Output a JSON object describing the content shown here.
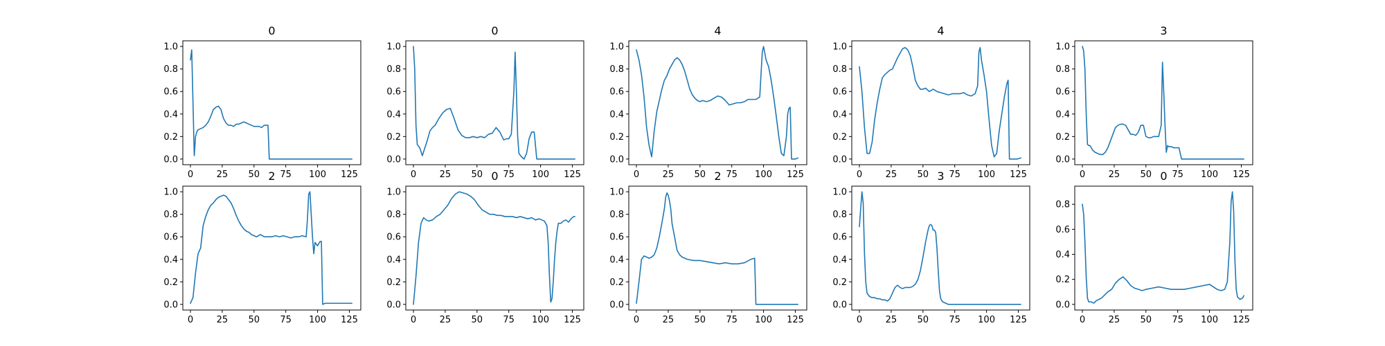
{
  "colors": {
    "line": "#1f77b4",
    "axis": "#000000",
    "background": "#ffffff"
  },
  "chart_data": [
    {
      "type": "line",
      "title": "0",
      "xlim": [
        -6,
        134
      ],
      "ylim": [
        -0.05,
        1.05
      ],
      "xticks": [
        0,
        25,
        50,
        75,
        100,
        125
      ],
      "yticks": [
        0.0,
        0.2,
        0.4,
        0.6,
        0.8,
        1.0
      ],
      "x": [
        0,
        1,
        2,
        3,
        4,
        5,
        6,
        8,
        10,
        12,
        14,
        16,
        18,
        20,
        22,
        24,
        26,
        28,
        30,
        32,
        34,
        36,
        38,
        40,
        42,
        44,
        46,
        48,
        50,
        52,
        54,
        56,
        58,
        60,
        61,
        62,
        64,
        70,
        80,
        90,
        100,
        110,
        120,
        127
      ],
      "y": [
        0.88,
        0.97,
        0.5,
        0.03,
        0.2,
        0.24,
        0.26,
        0.27,
        0.28,
        0.3,
        0.33,
        0.38,
        0.44,
        0.46,
        0.47,
        0.44,
        0.36,
        0.32,
        0.3,
        0.3,
        0.29,
        0.31,
        0.31,
        0.32,
        0.33,
        0.32,
        0.31,
        0.3,
        0.29,
        0.29,
        0.29,
        0.28,
        0.3,
        0.3,
        0.3,
        0.0,
        0.0,
        0.0,
        0.0,
        0.0,
        0.0,
        0.0,
        0.0,
        0.0
      ]
    },
    {
      "type": "line",
      "title": "0",
      "xlim": [
        -6,
        134
      ],
      "ylim": [
        -0.05,
        1.05
      ],
      "xticks": [
        0,
        25,
        50,
        75,
        100,
        125
      ],
      "yticks": [
        0.0,
        0.2,
        0.4,
        0.6,
        0.8,
        1.0
      ],
      "x": [
        0,
        1,
        2,
        3,
        5,
        7,
        9,
        11,
        13,
        15,
        17,
        20,
        23,
        26,
        29,
        32,
        35,
        38,
        41,
        44,
        47,
        50,
        53,
        56,
        59,
        62,
        65,
        68,
        71,
        73,
        75,
        77,
        79,
        80,
        81,
        82,
        83,
        85,
        87,
        89,
        91,
        93,
        95,
        97,
        98,
        100,
        105,
        110,
        120,
        127
      ],
      "y": [
        1.0,
        0.8,
        0.3,
        0.13,
        0.1,
        0.03,
        0.1,
        0.17,
        0.25,
        0.28,
        0.3,
        0.36,
        0.41,
        0.44,
        0.45,
        0.36,
        0.26,
        0.21,
        0.19,
        0.19,
        0.2,
        0.19,
        0.2,
        0.19,
        0.22,
        0.23,
        0.28,
        0.24,
        0.17,
        0.18,
        0.18,
        0.22,
        0.6,
        0.95,
        0.6,
        0.2,
        0.05,
        0.02,
        0.0,
        0.05,
        0.18,
        0.24,
        0.24,
        0.0,
        0.0,
        0.0,
        0.0,
        0.0,
        0.0,
        0.0
      ]
    },
    {
      "type": "line",
      "title": "4",
      "xlim": [
        -6,
        134
      ],
      "ylim": [
        -0.05,
        1.05
      ],
      "xticks": [
        0,
        25,
        50,
        75,
        100,
        125
      ],
      "yticks": [
        0.0,
        0.2,
        0.4,
        0.6,
        0.8,
        1.0
      ],
      "x": [
        0,
        2,
        4,
        6,
        8,
        10,
        12,
        14,
        16,
        18,
        20,
        22,
        24,
        26,
        28,
        30,
        32,
        34,
        36,
        38,
        40,
        42,
        44,
        46,
        48,
        50,
        52,
        55,
        58,
        61,
        64,
        67,
        70,
        73,
        76,
        79,
        82,
        85,
        88,
        91,
        94,
        97,
        99,
        100,
        102,
        104,
        106,
        108,
        110,
        112,
        114,
        116,
        118,
        119,
        120,
        121,
        122,
        125,
        127
      ],
      "y": [
        0.97,
        0.88,
        0.75,
        0.55,
        0.28,
        0.12,
        0.02,
        0.25,
        0.42,
        0.52,
        0.62,
        0.7,
        0.74,
        0.8,
        0.84,
        0.88,
        0.9,
        0.88,
        0.84,
        0.78,
        0.7,
        0.62,
        0.57,
        0.54,
        0.52,
        0.51,
        0.52,
        0.51,
        0.52,
        0.54,
        0.56,
        0.55,
        0.52,
        0.48,
        0.49,
        0.5,
        0.5,
        0.51,
        0.53,
        0.53,
        0.53,
        0.55,
        0.95,
        1.0,
        0.88,
        0.82,
        0.7,
        0.55,
        0.38,
        0.2,
        0.05,
        0.03,
        0.2,
        0.4,
        0.45,
        0.46,
        0.0,
        0.0,
        0.01
      ]
    },
    {
      "type": "line",
      "title": "4",
      "xlim": [
        -6,
        134
      ],
      "ylim": [
        -0.05,
        1.05
      ],
      "xticks": [
        0,
        25,
        50,
        75,
        100,
        125
      ],
      "yticks": [
        0.0,
        0.2,
        0.4,
        0.6,
        0.8,
        1.0
      ],
      "x": [
        0,
        2,
        4,
        6,
        8,
        10,
        12,
        14,
        16,
        18,
        20,
        22,
        24,
        26,
        28,
        30,
        32,
        34,
        36,
        38,
        40,
        42,
        44,
        46,
        48,
        50,
        52,
        55,
        58,
        61,
        64,
        67,
        70,
        73,
        76,
        79,
        82,
        85,
        88,
        91,
        93,
        94,
        95,
        96,
        98,
        100,
        102,
        104,
        106,
        108,
        110,
        112,
        114,
        116,
        117,
        118,
        120,
        124,
        127
      ],
      "y": [
        0.82,
        0.6,
        0.28,
        0.05,
        0.05,
        0.15,
        0.35,
        0.5,
        0.62,
        0.72,
        0.75,
        0.77,
        0.79,
        0.8,
        0.85,
        0.9,
        0.94,
        0.98,
        0.99,
        0.97,
        0.92,
        0.82,
        0.7,
        0.65,
        0.62,
        0.62,
        0.63,
        0.6,
        0.62,
        0.6,
        0.59,
        0.58,
        0.57,
        0.58,
        0.58,
        0.58,
        0.59,
        0.57,
        0.56,
        0.58,
        0.65,
        0.95,
        0.99,
        0.88,
        0.75,
        0.6,
        0.35,
        0.12,
        0.02,
        0.05,
        0.25,
        0.4,
        0.55,
        0.67,
        0.7,
        0.0,
        0.0,
        0.0,
        0.01
      ]
    },
    {
      "type": "line",
      "title": "3",
      "xlim": [
        -6,
        134
      ],
      "ylim": [
        -0.05,
        1.05
      ],
      "xticks": [
        0,
        25,
        50,
        75,
        100,
        125
      ],
      "yticks": [
        0.0,
        0.2,
        0.4,
        0.6,
        0.8,
        1.0
      ],
      "x": [
        0,
        1,
        2,
        3,
        4,
        5,
        6,
        8,
        10,
        12,
        14,
        16,
        18,
        20,
        22,
        24,
        26,
        28,
        30,
        32,
        34,
        36,
        38,
        40,
        42,
        44,
        46,
        48,
        50,
        52,
        54,
        56,
        58,
        60,
        62,
        63,
        64,
        65,
        66,
        67,
        68,
        70,
        72,
        74,
        76,
        78,
        80,
        90,
        100,
        110,
        120,
        127
      ],
      "y": [
        1.0,
        0.96,
        0.8,
        0.4,
        0.13,
        0.12,
        0.12,
        0.08,
        0.06,
        0.05,
        0.04,
        0.04,
        0.06,
        0.1,
        0.16,
        0.22,
        0.28,
        0.3,
        0.31,
        0.31,
        0.3,
        0.26,
        0.22,
        0.22,
        0.21,
        0.24,
        0.3,
        0.3,
        0.2,
        0.19,
        0.19,
        0.2,
        0.2,
        0.2,
        0.3,
        0.86,
        0.6,
        0.3,
        0.06,
        0.12,
        0.11,
        0.11,
        0.1,
        0.1,
        0.1,
        0.0,
        0.0,
        0.0,
        0.0,
        0.0,
        0.0,
        0.0
      ]
    },
    {
      "type": "line",
      "title": "2",
      "xlim": [
        -6,
        134
      ],
      "ylim": [
        -0.05,
        1.05
      ],
      "xticks": [
        0,
        25,
        50,
        75,
        100,
        125
      ],
      "yticks": [
        0.0,
        0.2,
        0.4,
        0.6,
        0.8,
        1.0
      ],
      "x": [
        0,
        2,
        4,
        6,
        8,
        10,
        12,
        14,
        16,
        18,
        20,
        22,
        24,
        26,
        28,
        30,
        32,
        34,
        36,
        38,
        40,
        42,
        44,
        46,
        48,
        50,
        52,
        55,
        58,
        61,
        64,
        67,
        70,
        73,
        76,
        79,
        82,
        85,
        88,
        91,
        92,
        93,
        94,
        95,
        96,
        97,
        98,
        100,
        102,
        103,
        104,
        106,
        110,
        115,
        120,
        125,
        127
      ],
      "y": [
        0.01,
        0.06,
        0.28,
        0.45,
        0.5,
        0.7,
        0.78,
        0.84,
        0.88,
        0.9,
        0.93,
        0.95,
        0.96,
        0.97,
        0.96,
        0.93,
        0.9,
        0.85,
        0.79,
        0.74,
        0.7,
        0.67,
        0.65,
        0.64,
        0.62,
        0.61,
        0.6,
        0.62,
        0.6,
        0.6,
        0.6,
        0.61,
        0.6,
        0.61,
        0.6,
        0.59,
        0.6,
        0.6,
        0.61,
        0.6,
        0.75,
        0.98,
        1.0,
        0.8,
        0.6,
        0.45,
        0.55,
        0.52,
        0.56,
        0.56,
        0.0,
        0.01,
        0.01,
        0.01,
        0.01,
        0.01,
        0.01
      ]
    },
    {
      "type": "line",
      "title": "0",
      "xlim": [
        -6,
        134
      ],
      "ylim": [
        -0.05,
        1.05
      ],
      "xticks": [
        0,
        25,
        50,
        75,
        100,
        125
      ],
      "yticks": [
        0.0,
        0.2,
        0.4,
        0.6,
        0.8,
        1.0
      ],
      "x": [
        0,
        2,
        4,
        6,
        8,
        10,
        12,
        15,
        18,
        21,
        24,
        27,
        30,
        33,
        36,
        39,
        42,
        45,
        48,
        51,
        54,
        57,
        60,
        63,
        66,
        69,
        72,
        75,
        78,
        81,
        84,
        87,
        90,
        93,
        96,
        99,
        101,
        103,
        105,
        106,
        107,
        108,
        109,
        110,
        111,
        112,
        113,
        114,
        116,
        118,
        120,
        122,
        124,
        126,
        127
      ],
      "y": [
        0.0,
        0.25,
        0.55,
        0.72,
        0.77,
        0.75,
        0.74,
        0.75,
        0.78,
        0.8,
        0.84,
        0.88,
        0.94,
        0.98,
        1.0,
        0.99,
        0.98,
        0.96,
        0.93,
        0.88,
        0.84,
        0.82,
        0.8,
        0.8,
        0.79,
        0.79,
        0.78,
        0.78,
        0.78,
        0.77,
        0.78,
        0.77,
        0.76,
        0.77,
        0.75,
        0.76,
        0.75,
        0.74,
        0.7,
        0.55,
        0.25,
        0.02,
        0.05,
        0.2,
        0.4,
        0.55,
        0.65,
        0.72,
        0.72,
        0.74,
        0.75,
        0.73,
        0.76,
        0.78,
        0.78
      ]
    },
    {
      "type": "line",
      "title": "2",
      "xlim": [
        -6,
        134
      ],
      "ylim": [
        -0.05,
        1.05
      ],
      "xticks": [
        0,
        25,
        50,
        75,
        100,
        125
      ],
      "yticks": [
        0.0,
        0.2,
        0.4,
        0.6,
        0.8,
        1.0
      ],
      "x": [
        0,
        2,
        4,
        6,
        8,
        10,
        12,
        14,
        16,
        18,
        20,
        22,
        23,
        24,
        25,
        26,
        27,
        28,
        30,
        32,
        34,
        36,
        38,
        40,
        45,
        50,
        55,
        60,
        65,
        70,
        75,
        80,
        85,
        90,
        93,
        94,
        95,
        100,
        110,
        120,
        127
      ],
      "y": [
        0.01,
        0.2,
        0.4,
        0.43,
        0.42,
        0.41,
        0.42,
        0.44,
        0.5,
        0.6,
        0.72,
        0.85,
        0.95,
        0.99,
        0.97,
        0.92,
        0.85,
        0.72,
        0.6,
        0.48,
        0.44,
        0.42,
        0.41,
        0.4,
        0.39,
        0.39,
        0.38,
        0.37,
        0.36,
        0.37,
        0.36,
        0.36,
        0.37,
        0.4,
        0.41,
        0.0,
        0.0,
        0.0,
        0.0,
        0.0,
        0.0
      ]
    },
    {
      "type": "line",
      "title": "3",
      "xlim": [
        -6,
        134
      ],
      "ylim": [
        -0.05,
        1.05
      ],
      "xticks": [
        0,
        25,
        50,
        75,
        100,
        125
      ],
      "yticks": [
        0.0,
        0.2,
        0.4,
        0.6,
        0.8,
        1.0
      ],
      "x": [
        0,
        1,
        2,
        3,
        4,
        5,
        6,
        8,
        10,
        12,
        14,
        16,
        18,
        20,
        22,
        24,
        26,
        28,
        30,
        32,
        34,
        36,
        38,
        40,
        42,
        44,
        46,
        48,
        50,
        52,
        54,
        55,
        56,
        57,
        58,
        59,
        60,
        61,
        62,
        63,
        64,
        65,
        66,
        68,
        70,
        75,
        80,
        90,
        100,
        110,
        120,
        127
      ],
      "y": [
        0.69,
        0.85,
        1.0,
        0.9,
        0.45,
        0.2,
        0.1,
        0.07,
        0.06,
        0.06,
        0.05,
        0.05,
        0.04,
        0.04,
        0.03,
        0.05,
        0.1,
        0.15,
        0.17,
        0.15,
        0.14,
        0.15,
        0.15,
        0.15,
        0.16,
        0.18,
        0.22,
        0.3,
        0.42,
        0.55,
        0.66,
        0.7,
        0.71,
        0.7,
        0.66,
        0.66,
        0.64,
        0.5,
        0.3,
        0.12,
        0.05,
        0.03,
        0.02,
        0.01,
        0.0,
        0.0,
        0.0,
        0.0,
        0.0,
        0.0,
        0.0,
        0.0
      ]
    },
    {
      "type": "line",
      "title": "0",
      "xlim": [
        -6,
        134
      ],
      "ylim": [
        -0.045,
        0.945
      ],
      "xticks": [
        0,
        25,
        50,
        75,
        100,
        125
      ],
      "yticks": [
        0.0,
        0.2,
        0.4,
        0.6,
        0.8
      ],
      "x": [
        0,
        1,
        2,
        3,
        4,
        5,
        7,
        9,
        11,
        13,
        15,
        17,
        20,
        23,
        26,
        29,
        32,
        35,
        38,
        41,
        44,
        47,
        50,
        55,
        60,
        65,
        70,
        75,
        80,
        85,
        90,
        95,
        100,
        103,
        106,
        109,
        112,
        114,
        116,
        117,
        118,
        119,
        120,
        121,
        122,
        124,
        126,
        127
      ],
      "y": [
        0.8,
        0.72,
        0.5,
        0.22,
        0.05,
        0.02,
        0.02,
        0.01,
        0.03,
        0.04,
        0.05,
        0.07,
        0.1,
        0.12,
        0.17,
        0.2,
        0.22,
        0.19,
        0.15,
        0.13,
        0.12,
        0.11,
        0.12,
        0.13,
        0.14,
        0.13,
        0.12,
        0.12,
        0.12,
        0.13,
        0.14,
        0.15,
        0.16,
        0.14,
        0.12,
        0.11,
        0.12,
        0.18,
        0.5,
        0.82,
        0.9,
        0.75,
        0.35,
        0.12,
        0.06,
        0.04,
        0.05,
        0.07
      ]
    }
  ]
}
